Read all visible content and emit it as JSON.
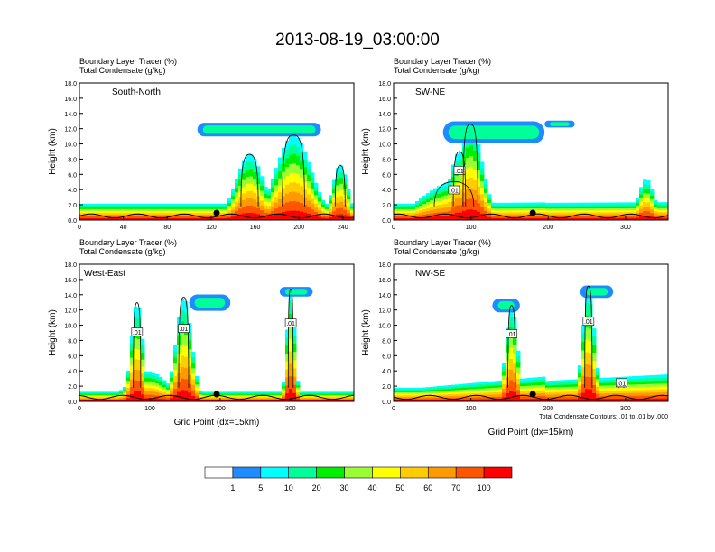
{
  "title": "2013-08-19_03:00:00",
  "panel_header_line1": "Boundary Layer Tracer   (%)",
  "panel_header_line2": "Total Condensate   (g/kg)",
  "contour_note": "Total Condensate Contours: .01 to .01 by .000",
  "colorbar": {
    "levels": [
      "1",
      "5",
      "10",
      "20",
      "30",
      "40",
      "50",
      "60",
      "70",
      "100"
    ],
    "colors": [
      "#ffffff",
      "#1e8cff",
      "#00ffff",
      "#00ff99",
      "#00ee00",
      "#99ff33",
      "#ffff00",
      "#ffcc00",
      "#ff9900",
      "#ff5500",
      "#ff0000"
    ]
  },
  "chart_data": [
    {
      "type": "heatmap",
      "label": "South-North",
      "ylabel": "Height (km)",
      "xlabel": "",
      "ylim": [
        0,
        18
      ],
      "xlim": [
        0,
        250
      ],
      "xticks": [
        "0",
        "40",
        "80",
        "120",
        "160",
        "200",
        "240"
      ],
      "yticks": [
        "0.0",
        "2.0",
        "4.0",
        "6.0",
        "8.0",
        "10.0",
        "12.0",
        "14.0",
        "16.0",
        "18.0"
      ],
      "contour_labels": [],
      "surface_marker_x": 125
    },
    {
      "type": "heatmap",
      "label": "SW-NE",
      "ylabel": "Height (km)",
      "xlabel": "",
      "ylim": [
        0,
        18
      ],
      "xlim": [
        0,
        355
      ],
      "xticks": [
        "0",
        "100",
        "200",
        "300"
      ],
      "yticks": [
        "0.0",
        "2.0",
        "4.0",
        "6.0",
        "8.0",
        "10.0",
        "12.0",
        "14.0",
        "16.0",
        "18.0"
      ],
      "contour_labels": [
        ".01",
        ".01"
      ],
      "surface_marker_x": 180
    },
    {
      "type": "heatmap",
      "label": "West-East",
      "ylabel": "Height (km)",
      "xlabel": "Grid Point (dx=15km)",
      "ylim": [
        0,
        18
      ],
      "xlim": [
        0,
        390
      ],
      "xticks": [
        "0",
        "100",
        "200",
        "300"
      ],
      "yticks": [
        "0.0",
        "2.0",
        "4.0",
        "6.0",
        "8.0",
        "10.0",
        "12.0",
        "14.0",
        "16.0",
        "18.0"
      ],
      "contour_labels": [
        ".01",
        ".01",
        ".01",
        ".01"
      ],
      "surface_marker_x": 195
    },
    {
      "type": "heatmap",
      "label": "NW-SE",
      "ylabel": "Height (km)",
      "xlabel": "Grid Point (dx=15km)",
      "ylim": [
        0,
        18
      ],
      "xlim": [
        0,
        355
      ],
      "xticks": [
        "0",
        "100",
        "200",
        "300"
      ],
      "yticks": [
        "0.0",
        "2.0",
        "4.0",
        "6.0",
        "8.0",
        "10.0",
        "12.0",
        "14.0",
        "16.0",
        "18.0"
      ],
      "contour_labels": [
        ".01",
        ".01",
        ".01"
      ],
      "surface_marker_x": 180
    }
  ]
}
